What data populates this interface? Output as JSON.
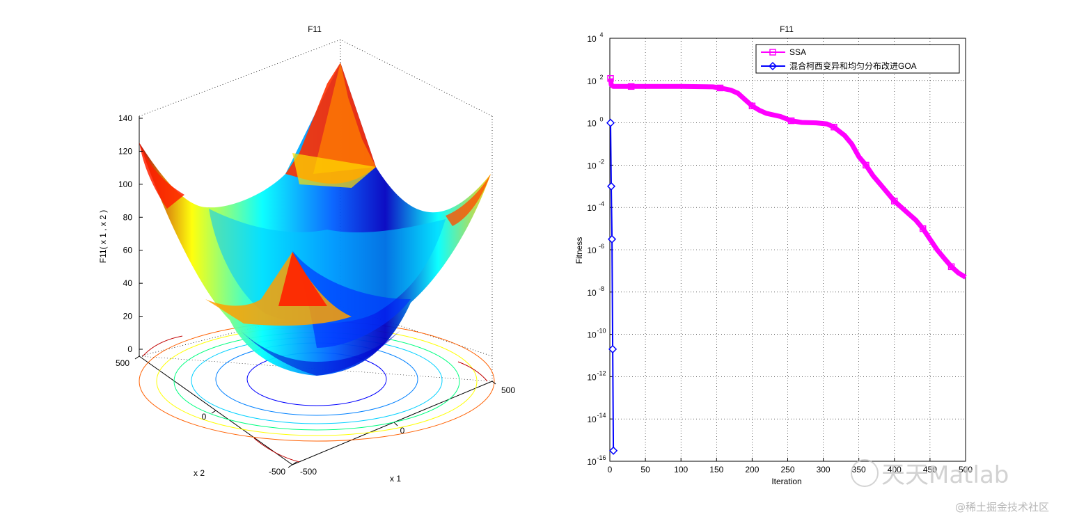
{
  "chart_data": [
    {
      "type": "surface3d",
      "title": "F11",
      "zlabel": "F11( x 1 , x 2 )",
      "xlabel": "x 1",
      "ylabel": "x 2",
      "xticks": [
        "-500",
        "0",
        "500"
      ],
      "yticks": [
        "-500",
        "0",
        "500"
      ],
      "zticks": [
        "0",
        "20",
        "40",
        "60",
        "80",
        "100",
        "120",
        "140"
      ],
      "zlim": [
        0,
        140
      ],
      "colormap": "jet",
      "contour_levels_in_floor": 6
    },
    {
      "type": "line",
      "title": "F11",
      "xlabel": "Iteration",
      "ylabel": "Fitness",
      "yscale": "log",
      "xlim": [
        0,
        500
      ],
      "ylim_exponents": [
        -16,
        4
      ],
      "xticks": [
        "0",
        "50",
        "100",
        "150",
        "200",
        "250",
        "300",
        "350",
        "400",
        "450",
        "500"
      ],
      "yticks": [
        "10^-16",
        "10^-14",
        "10^-12",
        "10^-10",
        "10^-8",
        "10^-6",
        "10^-4",
        "10^-2",
        "10^0",
        "10^2",
        "10^4"
      ],
      "grid": true,
      "legend_position": "top-right",
      "series": [
        {
          "name": "SSA",
          "color": "#ff00ff",
          "marker": "square",
          "x": [
            1,
            2,
            5,
            10,
            30,
            60,
            100,
            145,
            155,
            170,
            180,
            190,
            200,
            210,
            220,
            240,
            255,
            270,
            290,
            305,
            315,
            330,
            340,
            350,
            360,
            370,
            380,
            390,
            400,
            410,
            420,
            430,
            440,
            450,
            460,
            470,
            480,
            490,
            500
          ],
          "y_log10": [
            2.1,
            1.8,
            1.72,
            1.72,
            1.72,
            1.72,
            1.72,
            1.7,
            1.65,
            1.55,
            1.4,
            1.1,
            0.8,
            0.6,
            0.45,
            0.3,
            0.1,
            0.02,
            0.0,
            -0.05,
            -0.2,
            -0.6,
            -1.0,
            -1.6,
            -2.0,
            -2.5,
            -2.9,
            -3.3,
            -3.7,
            -4.0,
            -4.3,
            -4.6,
            -5.0,
            -5.5,
            -6.0,
            -6.4,
            -6.8,
            -7.1,
            -7.3
          ]
        },
        {
          "name": "混合柯西变异和均匀分布改进GOA",
          "color": "#0000ff",
          "marker": "diamond",
          "x": [
            1,
            2,
            3,
            4,
            5
          ],
          "y_log10": [
            0.0,
            -3.0,
            -5.5,
            -10.7,
            -15.5
          ]
        }
      ]
    }
  ],
  "watermarks": {
    "brand": "天天Matlab",
    "footer": "@稀土掘金技术社区"
  }
}
